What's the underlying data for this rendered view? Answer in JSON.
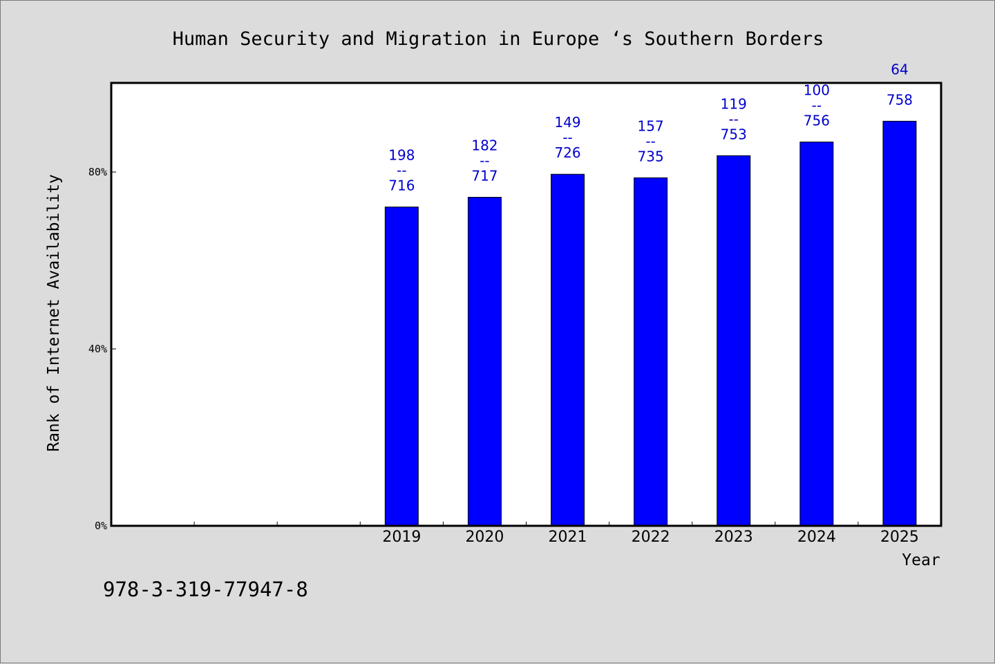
{
  "chart_data": {
    "type": "bar",
    "title": "Human Security and Migration in Europe ‘s Southern Borders",
    "xlabel": "Year",
    "ylabel": "Rank of Internet Availability",
    "categories": [
      "2019",
      "2020",
      "2021",
      "2022",
      "2023",
      "2024",
      "2025"
    ],
    "values": [
      72.1,
      74.3,
      79.5,
      78.7,
      83.7,
      86.8,
      91.5
    ],
    "value_unit": "%",
    "bar_labels": [
      [
        "198",
        "--",
        "716"
      ],
      [
        "182",
        "--",
        "717"
      ],
      [
        "149",
        "--",
        "726"
      ],
      [
        "157",
        "--",
        "735"
      ],
      [
        "119",
        "--",
        "753"
      ],
      [
        "100",
        "--",
        "756"
      ],
      [
        "64",
        "",
        "758"
      ]
    ],
    "yticks": [
      {
        "value": 0,
        "label": "0%"
      },
      {
        "value": 40,
        "label": "40%"
      },
      {
        "value": 80,
        "label": "80%"
      }
    ],
    "ylim": [
      0,
      100
    ],
    "empty_leading_slots": 3,
    "grid": false,
    "legend": "none",
    "bar_color": "#0000ff",
    "label_color": "#0000cc"
  },
  "footer": {
    "isbn": "978-3-319-77947-8"
  }
}
